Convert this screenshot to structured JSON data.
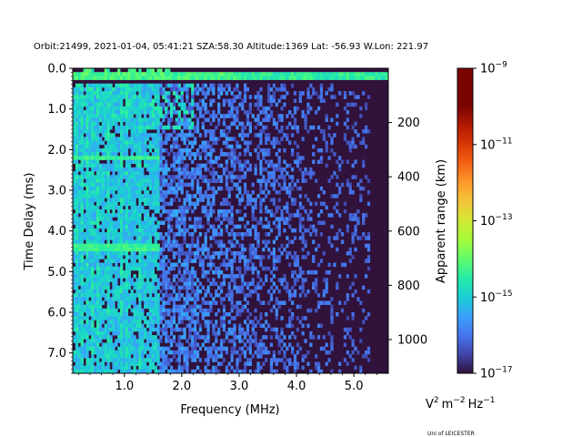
{
  "chart_data": {
    "type": "heatmap",
    "title": "Orbit:21499, 2021-01-04, 05:41:21 SZA:58.30 Altitude:1369 Lat: -56.93 W.Lon: 221.97",
    "xlabel": "Frequency (MHz)",
    "ylabel": "Time Delay (ms)",
    "y2label": "Apparent range (km)",
    "xlim": [
      0.1,
      5.6
    ],
    "ylim": [
      7.5,
      0.0
    ],
    "x_ticks": [
      {
        "value": 1.0,
        "label": "1.0"
      },
      {
        "value": 2.0,
        "label": "2.0"
      },
      {
        "value": 3.0,
        "label": "3.0"
      },
      {
        "value": 4.0,
        "label": "4.0"
      },
      {
        "value": 5.0,
        "label": "5.0"
      }
    ],
    "y_ticks": [
      {
        "value": 0.0,
        "label": "0.0"
      },
      {
        "value": 1.0,
        "label": "1.0"
      },
      {
        "value": 2.0,
        "label": "2.0"
      },
      {
        "value": 3.0,
        "label": "3.0"
      },
      {
        "value": 4.0,
        "label": "4.0"
      },
      {
        "value": 5.0,
        "label": "5.0"
      },
      {
        "value": 6.0,
        "label": "6.0"
      },
      {
        "value": 7.0,
        "label": "7.0"
      }
    ],
    "y2_ticks": [
      {
        "value": 200,
        "label": "200"
      },
      {
        "value": 400,
        "label": "400"
      },
      {
        "value": 600,
        "label": "600"
      },
      {
        "value": 800,
        "label": "800"
      },
      {
        "value": 1000,
        "label": "1000"
      }
    ],
    "y2_km_per_ms": 149.9,
    "colorbar": {
      "label_base": "V",
      "label_unit_1": "m",
      "label_unit_2": "Hz",
      "scale": "log",
      "range_exponents": [
        -17,
        -9
      ],
      "colormap": "turbo",
      "ticks": [
        {
          "exponent": -9,
          "base": "10",
          "power": "−9"
        },
        {
          "exponent": -11,
          "base": "10",
          "power": "−11"
        },
        {
          "exponent": -13,
          "base": "10",
          "power": "−13"
        },
        {
          "exponent": -15,
          "base": "10",
          "power": "−15"
        },
        {
          "exponent": -17,
          "base": "10",
          "power": "−17"
        }
      ]
    },
    "grid": {
      "n_freq_bins": 120,
      "n_delay_bins": 80
    },
    "background_exponent": -17,
    "features": {
      "vertical_bright_lines_mhz": [
        0.18,
        0.26,
        0.34,
        0.45,
        0.55,
        0.72,
        0.93,
        1.05,
        1.27
      ],
      "vertical_line_exponent": -14,
      "top_echo_band_ms": [
        0.1,
        0.3
      ],
      "top_echo_exponent": -13.8,
      "cutoff_delay_ms": 0.35,
      "horizontal_streak_delays_ms": [
        2.2,
        4.4
      ],
      "noise_fade_mhz": 4.8
    }
  },
  "footer": {
    "credit": "Uni of LEICESTER"
  }
}
